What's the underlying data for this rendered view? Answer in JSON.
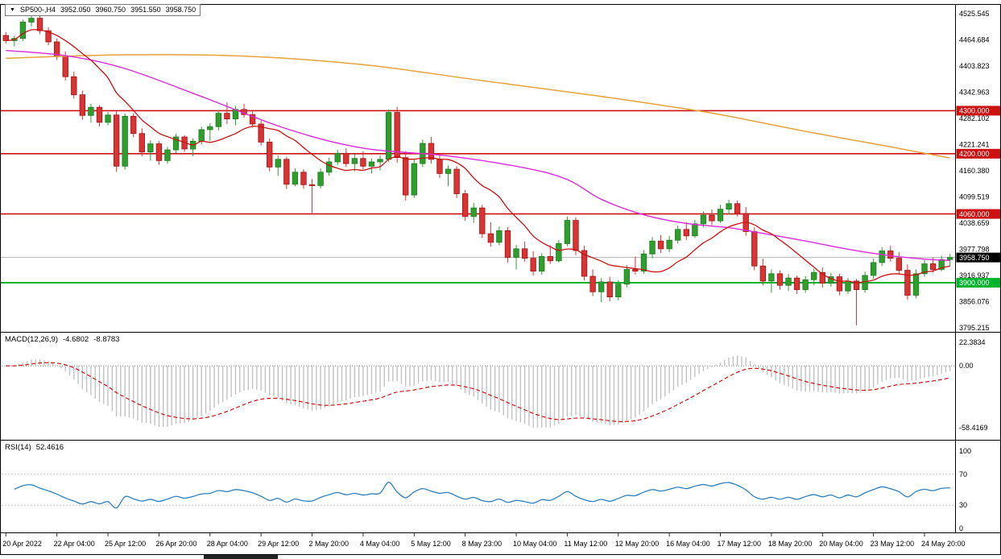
{
  "title_bar": {
    "dropdown_icon": "▼",
    "symbol": "SP500-,H4",
    "open": "3952.050",
    "high": "3960.750",
    "low": "3951.550",
    "close": "3958.750"
  },
  "colors": {
    "candle_up": "#2f9e2f",
    "candle_up_border": "#1d7a1d",
    "candle_down": "#d83434",
    "candle_down_border": "#a31414",
    "ma_fast": "#cc1111",
    "ma_mid": "#d92bd9",
    "ma_slow": "#e6a23c",
    "macd_hist": "#c2c2c2",
    "macd_signal": "#cc0000",
    "rsi_line": "#2e7fbe",
    "level_red": "#cc1111",
    "level_green": "#00b32c",
    "bid_line": "#b5b5b5",
    "current_label_bg": "#000000"
  },
  "chart_data": {
    "type": "candlestick",
    "title": "SP500-,H4",
    "timeframe": "H4",
    "price_max": 4525.545,
    "price_min": 3795.215,
    "y_ticks": [
      "4525.545",
      "4464.684",
      "4403.823",
      "4342.963",
      "4282.102",
      "4221.241",
      "4160.380",
      "4099.519",
      "4038.659",
      "3977.798",
      "3916.937",
      "3856.076",
      "3795.215"
    ],
    "x_labels": [
      {
        "index": 0,
        "label": "20 Apr 2022"
      },
      {
        "index": 6,
        "label": "22 Apr 04:00"
      },
      {
        "index": 12,
        "label": "25 Apr 12:00"
      },
      {
        "index": 18,
        "label": "26 Apr 20:00"
      },
      {
        "index": 24,
        "label": "28 Apr 04:00"
      },
      {
        "index": 30,
        "label": "29 Apr 12:00"
      },
      {
        "index": 36,
        "label": "2 May 20:00"
      },
      {
        "index": 42,
        "label": "4 May 04:00"
      },
      {
        "index": 48,
        "label": "5 May 12:00"
      },
      {
        "index": 54,
        "label": "8 May 23:00"
      },
      {
        "index": 60,
        "label": "10 May 04:00"
      },
      {
        "index": 66,
        "label": "11 May 12:00"
      },
      {
        "index": 72,
        "label": "12 May 20:00"
      },
      {
        "index": 78,
        "label": "16 May 04:00"
      },
      {
        "index": 84,
        "label": "17 May 12:00"
      },
      {
        "index": 90,
        "label": "18 May 20:00"
      },
      {
        "index": 96,
        "label": "20 May 04:00"
      },
      {
        "index": 102,
        "label": "23 May 12:00"
      },
      {
        "index": 108,
        "label": "24 May 20:00"
      }
    ],
    "candles": [
      [
        4475,
        4483,
        4456,
        4463
      ],
      [
        4463,
        4474,
        4450,
        4468
      ],
      [
        4468,
        4512,
        4462,
        4506
      ],
      [
        4506,
        4525,
        4496,
        4515
      ],
      [
        4515,
        4522,
        4478,
        4486
      ],
      [
        4486,
        4494,
        4452,
        4460
      ],
      [
        4460,
        4468,
        4418,
        4426
      ],
      [
        4426,
        4438,
        4370,
        4379
      ],
      [
        4379,
        4391,
        4328,
        4337
      ],
      [
        4337,
        4347,
        4279,
        4289
      ],
      [
        4289,
        4316,
        4272,
        4308
      ],
      [
        4308,
        4313,
        4263,
        4273
      ],
      [
        4273,
        4297,
        4266,
        4290
      ],
      [
        4290,
        4299,
        4158,
        4171
      ],
      [
        4171,
        4294,
        4163,
        4287
      ],
      [
        4287,
        4294,
        4238,
        4247
      ],
      [
        4247,
        4259,
        4194,
        4204
      ],
      [
        4204,
        4231,
        4184,
        4223
      ],
      [
        4223,
        4229,
        4174,
        4184
      ],
      [
        4184,
        4216,
        4177,
        4209
      ],
      [
        4209,
        4246,
        4201,
        4239
      ],
      [
        4239,
        4243,
        4204,
        4211
      ],
      [
        4211,
        4236,
        4194,
        4229
      ],
      [
        4229,
        4263,
        4221,
        4256
      ],
      [
        4256,
        4271,
        4229,
        4263
      ],
      [
        4263,
        4301,
        4254,
        4294
      ],
      [
        4294,
        4319,
        4269,
        4281
      ],
      [
        4281,
        4311,
        4266,
        4303
      ],
      [
        4303,
        4316,
        4284,
        4291
      ],
      [
        4291,
        4301,
        4261,
        4269
      ],
      [
        4269,
        4277,
        4219,
        4227
      ],
      [
        4227,
        4236,
        4159,
        4169
      ],
      [
        4169,
        4196,
        4149,
        4187
      ],
      [
        4187,
        4193,
        4118,
        4129
      ],
      [
        4129,
        4166,
        4124,
        4157
      ],
      [
        4157,
        4164,
        4119,
        4128
      ],
      [
        4128,
        4141,
        4062,
        4126
      ],
      [
        4126,
        4166,
        4119,
        4157
      ],
      [
        4157,
        4191,
        4149,
        4181
      ],
      [
        4181,
        4209,
        4174,
        4201
      ],
      [
        4201,
        4213,
        4169,
        4177
      ],
      [
        4177,
        4199,
        4159,
        4189
      ],
      [
        4189,
        4206,
        4164,
        4171
      ],
      [
        4171,
        4189,
        4154,
        4181
      ],
      [
        4181,
        4196,
        4161,
        4187
      ],
      [
        4187,
        4303,
        4181,
        4296
      ],
      [
        4296,
        4309,
        4179,
        4191
      ],
      [
        4191,
        4206,
        4091,
        4104
      ],
      [
        4104,
        4186,
        4097,
        4177
      ],
      [
        4177,
        4233,
        4169,
        4224
      ],
      [
        4224,
        4239,
        4177,
        4187
      ],
      [
        4187,
        4201,
        4144,
        4154
      ],
      [
        4154,
        4173,
        4124,
        4164
      ],
      [
        4164,
        4171,
        4097,
        4107
      ],
      [
        4107,
        4116,
        4044,
        4054
      ],
      [
        4054,
        4086,
        4039,
        4074
      ],
      [
        4074,
        4081,
        4004,
        4014
      ],
      [
        4014,
        4041,
        3984,
        3994
      ],
      [
        3994,
        4031,
        3987,
        4021
      ],
      [
        4021,
        4029,
        3947,
        3959
      ],
      [
        3959,
        3988,
        3931,
        3979
      ],
      [
        3979,
        3996,
        3949,
        3957
      ],
      [
        3957,
        3973,
        3917,
        3927
      ],
      [
        3927,
        3969,
        3919,
        3961
      ],
      [
        3961,
        3987,
        3944,
        3951
      ],
      [
        3951,
        3999,
        3947,
        3991
      ],
      [
        3991,
        4054,
        3985,
        4045
      ],
      [
        4045,
        4052,
        3964,
        3975
      ],
      [
        3975,
        3986,
        3905,
        3915
      ],
      [
        3915,
        3931,
        3869,
        3879
      ],
      [
        3879,
        3911,
        3855,
        3902
      ],
      [
        3902,
        3914,
        3857,
        3867
      ],
      [
        3867,
        3906,
        3859,
        3897
      ],
      [
        3897,
        3941,
        3889,
        3931
      ],
      [
        3931,
        3961,
        3919,
        3927
      ],
      [
        3927,
        3976,
        3921,
        3967
      ],
      [
        3967,
        4006,
        3957,
        3997
      ],
      [
        3997,
        4011,
        3969,
        3979
      ],
      [
        3979,
        4009,
        3971,
        3999
      ],
      [
        3999,
        4033,
        3991,
        4024
      ],
      [
        4024,
        4041,
        3999,
        4009
      ],
      [
        4009,
        4046,
        4004,
        4037
      ],
      [
        4037,
        4066,
        4029,
        4057
      ],
      [
        4057,
        4071,
        4034,
        4044
      ],
      [
        4044,
        4081,
        4039,
        4071
      ],
      [
        4071,
        4093,
        4059,
        4084
      ],
      [
        4084,
        4091,
        4054,
        4061
      ],
      [
        4061,
        4076,
        4009,
        4019
      ],
      [
        4019,
        4029,
        3929,
        3939
      ],
      [
        3939,
        3956,
        3894,
        3904
      ],
      [
        3904,
        3931,
        3877,
        3921
      ],
      [
        3921,
        3929,
        3884,
        3894
      ],
      [
        3894,
        3921,
        3881,
        3911
      ],
      [
        3911,
        3917,
        3874,
        3884
      ],
      [
        3884,
        3916,
        3877,
        3907
      ],
      [
        3907,
        3933,
        3894,
        3924
      ],
      [
        3924,
        3936,
        3889,
        3899
      ],
      [
        3899,
        3923,
        3891,
        3914
      ],
      [
        3914,
        3921,
        3871,
        3881
      ],
      [
        3881,
        3911,
        3874,
        3904
      ],
      [
        3904,
        3909,
        3801,
        3884
      ],
      [
        3884,
        3926,
        3877,
        3917
      ],
      [
        3917,
        3956,
        3909,
        3947
      ],
      [
        3947,
        3983,
        3939,
        3974
      ],
      [
        3974,
        3986,
        3949,
        3957
      ],
      [
        3957,
        3971,
        3919,
        3929
      ],
      [
        3929,
        3943,
        3861,
        3871
      ],
      [
        3871,
        3931,
        3864,
        3921
      ],
      [
        3921,
        3953,
        3914,
        3944
      ],
      [
        3944,
        3959,
        3924,
        3931
      ],
      [
        3931,
        3963,
        3927,
        3954
      ],
      [
        3954,
        3967,
        3939,
        3958.75
      ]
    ],
    "levels": [
      {
        "price": 4300,
        "label": "4300.000",
        "color": "#cc1111"
      },
      {
        "price": 4200,
        "label": "4200.000",
        "color": "#cc1111"
      },
      {
        "price": 4060,
        "label": "4060.000",
        "color": "#cc1111"
      },
      {
        "price": 3900,
        "label": "3900.000",
        "color": "#00b32c"
      }
    ],
    "current_price": {
      "price": 3958.75,
      "label": "3958.750"
    },
    "overlays": {
      "ma_fast": {
        "type": "sma",
        "period": 10
      },
      "ma_mid": {
        "points": [
          [
            0,
            4440
          ],
          [
            7,
            4428
          ],
          [
            14,
            4398
          ],
          [
            23,
            4333
          ],
          [
            33,
            4258
          ],
          [
            42,
            4213
          ],
          [
            52,
            4195
          ],
          [
            61,
            4167
          ],
          [
            66,
            4140
          ],
          [
            70,
            4094
          ],
          [
            75,
            4058
          ],
          [
            80,
            4038
          ],
          [
            85,
            4028
          ],
          [
            89,
            4015
          ],
          [
            94,
            3997
          ],
          [
            99,
            3978
          ],
          [
            104,
            3963
          ],
          [
            108,
            3955
          ],
          [
            111,
            3952
          ]
        ]
      },
      "ma_slow": {
        "points": [
          [
            0,
            4422
          ],
          [
            14,
            4430
          ],
          [
            28,
            4427
          ],
          [
            42,
            4407
          ],
          [
            56,
            4370
          ],
          [
            69,
            4336
          ],
          [
            78,
            4310
          ],
          [
            84,
            4291
          ],
          [
            94,
            4252
          ],
          [
            104,
            4216
          ],
          [
            111,
            4190
          ]
        ]
      }
    },
    "macd_panel": {
      "name": "MACD(12,26,9)",
      "macd_value": "-4.6802",
      "signal_value": "-8.8783",
      "params": {
        "fast": 12,
        "slow": 26,
        "signal": 9
      },
      "range_max": 22.3834,
      "range_min": -58.4169,
      "y_ticks": [
        {
          "value": 22.3834,
          "label": "22.3834"
        },
        {
          "value": 0,
          "label": "0.00"
        },
        {
          "value": -58.4169,
          "label": "-58.4169"
        }
      ]
    },
    "rsi_panel": {
      "name": "RSI(14)",
      "value": "52.4616",
      "period": 14,
      "levels": [
        70,
        30
      ],
      "y_ticks": [
        {
          "value": 100,
          "label": "100"
        },
        {
          "value": 70,
          "label": "70"
        },
        {
          "value": 30,
          "label": "30"
        },
        {
          "value": 0,
          "label": "0"
        }
      ]
    }
  }
}
